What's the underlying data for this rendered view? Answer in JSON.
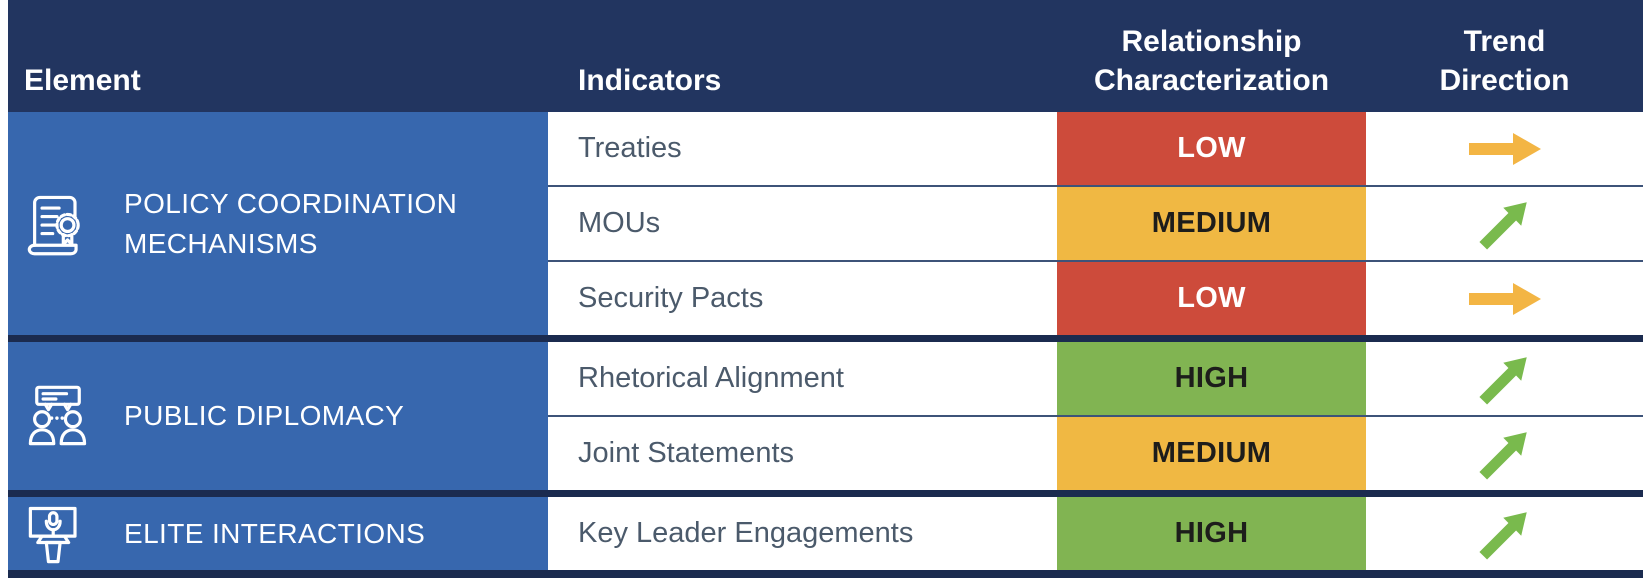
{
  "header": {
    "element": "Element",
    "indicators": "Indicators",
    "relationship_line1": "Relationship",
    "relationship_line2": "Characterization",
    "trend_line1": "Trend",
    "trend_line2": "Direction"
  },
  "groups": [
    {
      "element": "POLICY COORDINATION\nMECHANISMS",
      "icon": "certificate-icon",
      "rows": [
        {
          "indicator": "Treaties",
          "characterization": "LOW",
          "trend": "flat",
          "trend_icon": "right-arrow-icon"
        },
        {
          "indicator": "MOUs",
          "characterization": "MEDIUM",
          "trend": "up",
          "trend_icon": "up-right-arrow-icon"
        },
        {
          "indicator": "Security Pacts",
          "characterization": "LOW",
          "trend": "flat",
          "trend_icon": "right-arrow-icon"
        }
      ]
    },
    {
      "element": "PUBLIC DIPLOMACY",
      "icon": "conversation-icon",
      "rows": [
        {
          "indicator": "Rhetorical Alignment",
          "characterization": "HIGH",
          "trend": "up",
          "trend_icon": "up-right-arrow-icon"
        },
        {
          "indicator": "Joint Statements",
          "characterization": "MEDIUM",
          "trend": "up",
          "trend_icon": "up-right-arrow-icon"
        }
      ]
    },
    {
      "element": "ELITE INTERACTIONS",
      "icon": "podium-icon",
      "rows": [
        {
          "indicator": "Key Leader Engagements",
          "characterization": "HIGH",
          "trend": "up",
          "trend_icon": "up-right-arrow-icon"
        }
      ]
    }
  ],
  "colors": {
    "header_bg": "#223560",
    "element_bg": "#3767AE",
    "divider": "#1B2B4F",
    "row_border": "#3D5379",
    "indicator_text": "#4B5A6B",
    "low_bg": "#CD4B3B",
    "low_text": "#FFFFFF",
    "medium_bg": "#F0B843",
    "high_bg": "#81B452",
    "dark_text": "#1D1D1B",
    "flat_arrow": "#F3B544",
    "up_arrow": "#79BA4D"
  },
  "chart_data": {
    "type": "table",
    "columns": [
      "Element",
      "Indicators",
      "Relationship Characterization",
      "Trend Direction"
    ],
    "rows": [
      [
        "POLICY COORDINATION MECHANISMS",
        "Treaties",
        "LOW",
        "flat"
      ],
      [
        "POLICY COORDINATION MECHANISMS",
        "MOUs",
        "MEDIUM",
        "up"
      ],
      [
        "POLICY COORDINATION MECHANISMS",
        "Security Pacts",
        "LOW",
        "flat"
      ],
      [
        "PUBLIC DIPLOMACY",
        "Rhetorical Alignment",
        "HIGH",
        "up"
      ],
      [
        "PUBLIC DIPLOMACY",
        "Joint Statements",
        "MEDIUM",
        "up"
      ],
      [
        "ELITE INTERACTIONS",
        "Key Leader Engagements",
        "HIGH",
        "up"
      ]
    ],
    "legend": {
      "LOW": "red",
      "MEDIUM": "amber",
      "HIGH": "green",
      "flat": "orange right arrow",
      "up": "green up-right arrow"
    }
  }
}
